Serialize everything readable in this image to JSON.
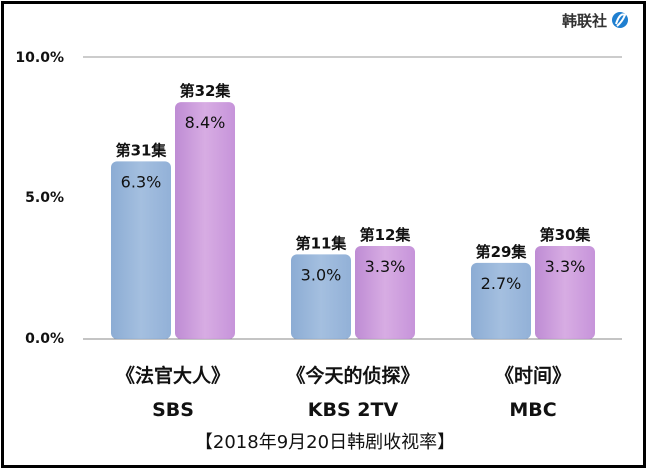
{
  "logo": {
    "text": "韩联社",
    "icon": "yonhap-logo-icon"
  },
  "chart_data": {
    "type": "bar",
    "title": "【2018年9月20日韩剧收视率】",
    "ylim": [
      0,
      10
    ],
    "yticks": [
      "0.0%",
      "5.0%",
      "10.0%"
    ],
    "grid": "top-line",
    "colors": {
      "blue": "#8fb0d8",
      "pink": "#c98fd8"
    },
    "categories": [
      {
        "name": "《法官大人》",
        "network": "SBS"
      },
      {
        "name": "《今天的侦探》",
        "network": "KBS 2TV"
      },
      {
        "name": "《时间》",
        "network": "MBC"
      }
    ],
    "bars": [
      {
        "category": 0,
        "episode": "第31集",
        "value": 6.3,
        "label": "6.3%",
        "color": "blue"
      },
      {
        "category": 0,
        "episode": "第32集",
        "value": 8.4,
        "label": "8.4%",
        "color": "pink"
      },
      {
        "category": 1,
        "episode": "第11集",
        "value": 3.0,
        "label": "3.0%",
        "color": "blue"
      },
      {
        "category": 1,
        "episode": "第12集",
        "value": 3.3,
        "label": "3.3%",
        "color": "pink"
      },
      {
        "category": 2,
        "episode": "第29集",
        "value": 2.7,
        "label": "2.7%",
        "color": "blue"
      },
      {
        "category": 2,
        "episode": "第30集",
        "value": 3.3,
        "label": "3.3%",
        "color": "pink"
      }
    ]
  }
}
